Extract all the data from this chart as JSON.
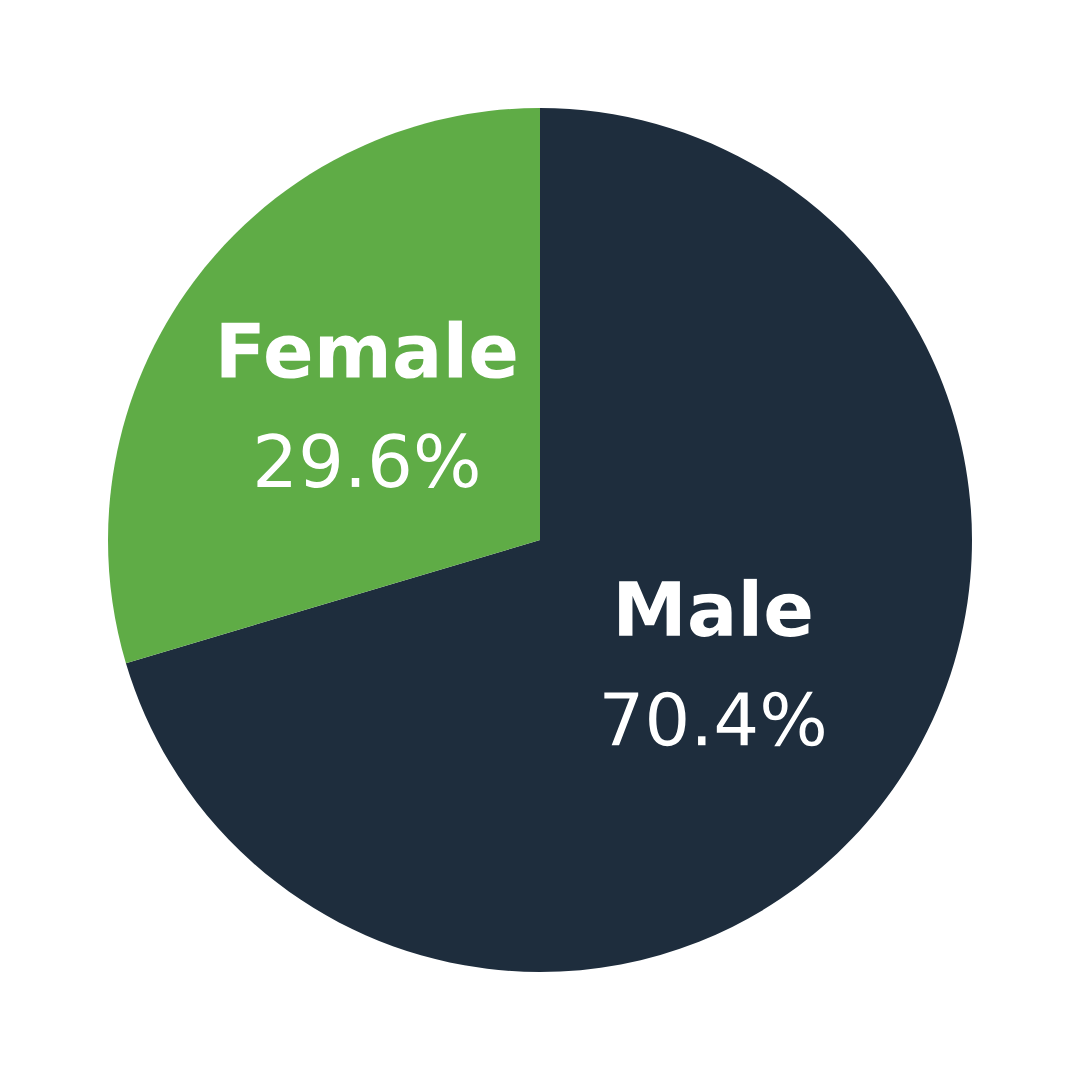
{
  "chart_data": {
    "type": "pie",
    "categories": [
      "Male",
      "Female"
    ],
    "values": [
      70.4,
      29.6
    ],
    "colors": [
      "#1e2d3d",
      "#5fac46"
    ],
    "value_labels": [
      "70.4%",
      "29.6%"
    ],
    "legend": false
  }
}
